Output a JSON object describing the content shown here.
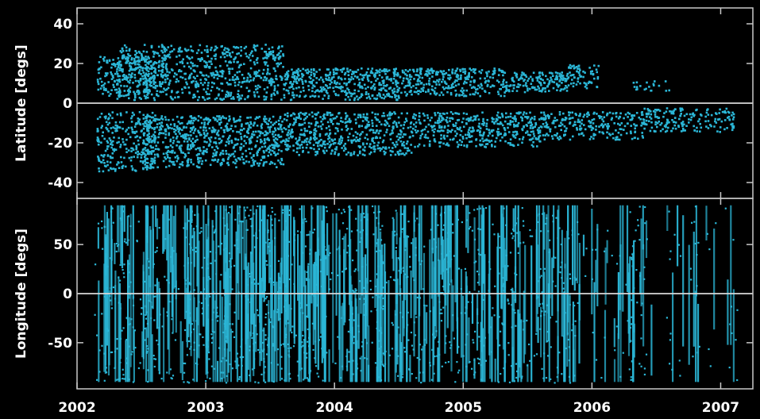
{
  "chart_data": [
    {
      "type": "scatter",
      "ylabel": "Latitude [degs]",
      "xlim": [
        2002.0,
        2007.25
      ],
      "ylim": [
        -48,
        48
      ],
      "yticks": [
        40,
        20,
        0,
        -20,
        -40
      ],
      "xticks": [
        2002,
        2003,
        2004,
        2005,
        2006,
        2007
      ],
      "zero_line": true,
      "point_color": "#2bb6d6",
      "series": [
        {
          "bands": [
            {
              "x": [
                2002.15,
                2002.7
              ],
              "y": [
                4,
                24
              ],
              "count": 250
            },
            {
              "x": [
                2002.3,
                2003.6
              ],
              "y": [
                2,
                30
              ],
              "count": 700
            },
            {
              "x": [
                2003.6,
                2004.5
              ],
              "y": [
                2,
                18
              ],
              "count": 420
            },
            {
              "x": [
                2004.5,
                2005.35
              ],
              "y": [
                4,
                18
              ],
              "count": 320
            },
            {
              "x": [
                2005.35,
                2005.8
              ],
              "y": [
                6,
                16
              ],
              "count": 150
            },
            {
              "x": [
                2005.8,
                2006.05
              ],
              "y": [
                8,
                20
              ],
              "count": 70
            },
            {
              "x": [
                2006.3,
                2006.6
              ],
              "y": [
                6,
                12
              ],
              "count": 20
            },
            {
              "x": [
                2002.15,
                2002.6
              ],
              "y": [
                -34,
                -4
              ],
              "count": 260
            },
            {
              "x": [
                2002.5,
                2003.6
              ],
              "y": [
                -32,
                -6
              ],
              "count": 750
            },
            {
              "x": [
                2003.6,
                2004.6
              ],
              "y": [
                -26,
                -4
              ],
              "count": 520
            },
            {
              "x": [
                2004.6,
                2005.6
              ],
              "y": [
                -22,
                -4
              ],
              "count": 430
            },
            {
              "x": [
                2005.6,
                2006.4
              ],
              "y": [
                -18,
                -4
              ],
              "count": 250
            },
            {
              "x": [
                2006.4,
                2007.1
              ],
              "y": [
                -14,
                -2
              ],
              "count": 180
            }
          ]
        }
      ]
    },
    {
      "type": "scatter",
      "ylabel": "Longitude [degs]",
      "xlabel": "",
      "xlim": [
        2002.0,
        2007.25
      ],
      "ylim": [
        -97,
        97
      ],
      "yticks": [
        50,
        0,
        -50
      ],
      "xticks": [
        2002,
        2003,
        2004,
        2005,
        2006,
        2007
      ],
      "zero_line": true,
      "point_color": "#2bb6d6",
      "series": [
        {
          "streak_ranges": [
            {
              "x": [
                2002.15,
                2002.5
              ],
              "streaks": 34
            },
            {
              "x": [
                2002.5,
                2003.6
              ],
              "streaks": 150
            },
            {
              "x": [
                2003.6,
                2004.5
              ],
              "streaks": 120
            },
            {
              "x": [
                2004.5,
                2005.3
              ],
              "streaks": 95
            },
            {
              "x": [
                2005.3,
                2005.9
              ],
              "streaks": 60
            },
            {
              "x": [
                2005.9,
                2006.5
              ],
              "streaks": 30
            },
            {
              "x": [
                2006.5,
                2007.1
              ],
              "streaks": 14
            }
          ],
          "y_range": [
            -90,
            90
          ]
        }
      ]
    }
  ],
  "x_tick_labels": [
    "2002",
    "2003",
    "2004",
    "2005",
    "2006",
    "2007"
  ],
  "top_tick_labels": [
    "40",
    "20",
    "0",
    "-20",
    "-40"
  ],
  "bottom_tick_labels": [
    "50",
    "0",
    "-50"
  ],
  "top_ylabel": "Latitude [degs]",
  "bottom_ylabel": "Longitude [degs]"
}
